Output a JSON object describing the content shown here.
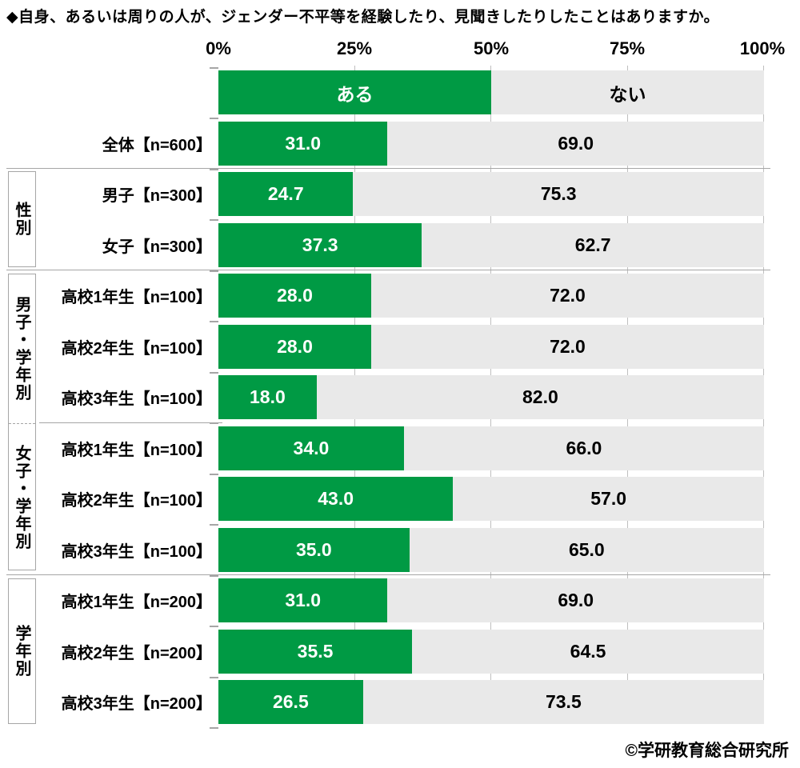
{
  "title": "◆自身、あるいは周りの人が、ジェンダー不平等を経験したり、見聞きしたりしたことはありますか。",
  "axis": {
    "labels": [
      "0%",
      "25%",
      "50%",
      "75%",
      "100%"
    ]
  },
  "legend": {
    "yes": "ある",
    "no": "ない"
  },
  "groups": [
    {
      "label": "性別"
    },
    {
      "label": "男子・学年別"
    },
    {
      "label": "女子・学年別"
    },
    {
      "label": "学年別"
    }
  ],
  "rows": [
    {
      "label": "全体【n=600】",
      "yes_label": "31.0",
      "no_label": "69.0"
    },
    {
      "label": "男子【n=300】",
      "yes_label": "24.7",
      "no_label": "75.3"
    },
    {
      "label": "女子【n=300】",
      "yes_label": "37.3",
      "no_label": "62.7"
    },
    {
      "label": "高校1年生【n=100】",
      "yes_label": "28.0",
      "no_label": "72.0"
    },
    {
      "label": "高校2年生【n=100】",
      "yes_label": "28.0",
      "no_label": "72.0"
    },
    {
      "label": "高校3年生【n=100】",
      "yes_label": "18.0",
      "no_label": "82.0"
    },
    {
      "label": "高校1年生【n=100】",
      "yes_label": "34.0",
      "no_label": "66.0"
    },
    {
      "label": "高校2年生【n=100】",
      "yes_label": "43.0",
      "no_label": "57.0"
    },
    {
      "label": "高校3年生【n=100】",
      "yes_label": "35.0",
      "no_label": "65.0"
    },
    {
      "label": "高校1年生【n=200】",
      "yes_label": "31.0",
      "no_label": "69.0"
    },
    {
      "label": "高校2年生【n=200】",
      "yes_label": "35.5",
      "no_label": "64.5"
    },
    {
      "label": "高校3年生【n=200】",
      "yes_label": "26.5",
      "no_label": "73.5"
    }
  ],
  "footer": {
    "copyright": "©学研教育総合研究所"
  },
  "colors": {
    "yes_green": "#009a44",
    "no_gray": "#e9e9e9",
    "gridline": "#bfbfbf",
    "separator": "#a6a6a6"
  },
  "chart_data": {
    "type": "bar",
    "stacked": true,
    "orientation": "horizontal",
    "title": "◆自身、あるいは周りの人が、ジェンダー不平等を経験したり、見聞きしたりしたことはありますか。",
    "categories": [
      "全体【n=600】",
      "男子【n=300】",
      "女子【n=300】",
      "高校1年生【n=100】",
      "高校2年生【n=100】",
      "高校3年生【n=100】",
      "高校1年生【n=100】",
      "高校2年生【n=100】",
      "高校3年生【n=100】",
      "高校1年生【n=200】",
      "高校2年生【n=200】",
      "高校3年生【n=200】"
    ],
    "series": [
      {
        "name": "ある",
        "values": [
          31.0,
          24.7,
          37.3,
          28.0,
          28.0,
          18.0,
          34.0,
          43.0,
          35.0,
          31.0,
          35.5,
          26.5
        ]
      },
      {
        "name": "ない",
        "values": [
          69.0,
          75.3,
          62.7,
          72.0,
          72.0,
          82.0,
          66.0,
          57.0,
          65.0,
          69.0,
          64.5,
          73.5
        ]
      }
    ],
    "row_groups": [
      {
        "label": "性別",
        "category_indexes": [
          1,
          2
        ]
      },
      {
        "label": "男子・学年別",
        "category_indexes": [
          3,
          4,
          5
        ]
      },
      {
        "label": "女子・学年別",
        "category_indexes": [
          6,
          7,
          8
        ]
      },
      {
        "label": "学年別",
        "category_indexes": [
          9,
          10,
          11
        ]
      }
    ],
    "xlim": [
      0,
      100
    ],
    "x_tick_labels": [
      "0%",
      "25%",
      "50%",
      "75%",
      "100%"
    ],
    "grid": true,
    "legend_position": "top-bar"
  }
}
